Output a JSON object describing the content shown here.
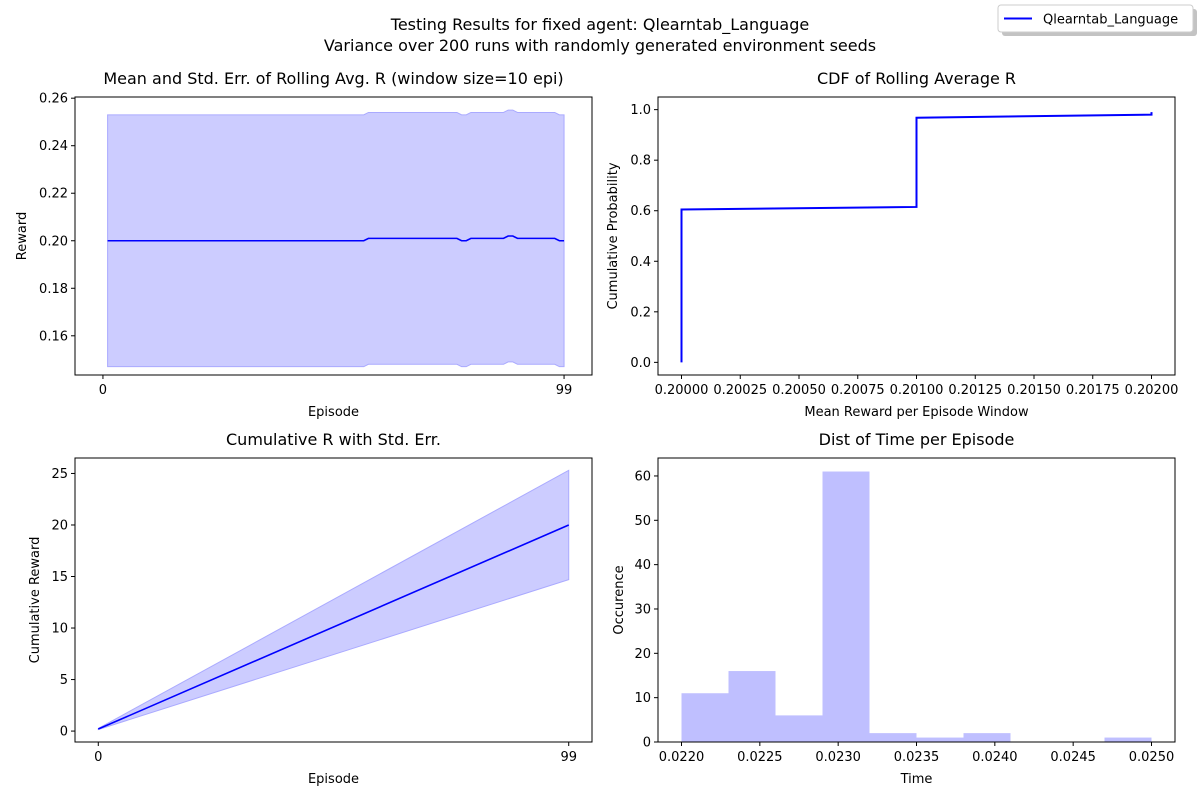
{
  "figure": {
    "suptitle_line1": "Testing Results for fixed agent: Qlearntab_Language",
    "suptitle_line2": "Variance over 200 runs with randomly generated environment seeds",
    "legend": {
      "label": "Qlearntab_Language",
      "color": "#0000ff",
      "placement": "top-right"
    }
  },
  "colors": {
    "line": "#0000ff",
    "band": "#ccccff",
    "band_edge": "#aaaaff",
    "hist": "#bfbfff"
  },
  "chart_data": [
    {
      "id": "rolling",
      "type": "line",
      "title": "Mean and Std. Err. of Rolling Avg. R (window size=10 epi)",
      "xlabel": "Episode",
      "ylabel": "Reward",
      "xlim": [
        -6,
        105
      ],
      "ylim": [
        0.1435,
        0.2605
      ],
      "xticks": [
        0,
        99
      ],
      "xtick_labels": [
        "0",
        "99"
      ],
      "yticks": [
        0.16,
        0.18,
        0.2,
        0.22,
        0.24,
        0.26
      ],
      "ytick_labels": [
        "0.16",
        "0.18",
        "0.20",
        "0.22",
        "0.24",
        "0.26"
      ],
      "series": [
        {
          "x": [
            1,
            56,
            57,
            76,
            77,
            78,
            79,
            86,
            87,
            88,
            89,
            90,
            97,
            98,
            99
          ],
          "mean": [
            0.2,
            0.2,
            0.201,
            0.201,
            0.2,
            0.2,
            0.201,
            0.201,
            0.202,
            0.202,
            0.201,
            0.201,
            0.201,
            0.2,
            0.2
          ],
          "upper": [
            0.253,
            0.253,
            0.254,
            0.254,
            0.253,
            0.253,
            0.254,
            0.254,
            0.255,
            0.255,
            0.254,
            0.254,
            0.254,
            0.253,
            0.253
          ],
          "lower": [
            0.147,
            0.147,
            0.148,
            0.148,
            0.147,
            0.147,
            0.148,
            0.148,
            0.149,
            0.149,
            0.148,
            0.148,
            0.148,
            0.147,
            0.147
          ]
        }
      ],
      "grid": false
    },
    {
      "id": "cdf",
      "type": "line",
      "title": "CDF of Rolling Average R",
      "xlabel": "Mean Reward per Episode Window",
      "ylabel": "Cumulative Probability",
      "xlim": [
        0.1999,
        0.2021
      ],
      "ylim": [
        -0.05,
        1.05
      ],
      "xticks": [
        0.2,
        0.20025,
        0.2005,
        0.20075,
        0.201,
        0.20125,
        0.2015,
        0.20175,
        0.202
      ],
      "xtick_labels": [
        "0.20000",
        "0.20025",
        "0.20050",
        "0.20075",
        "0.20100",
        "0.20125",
        "0.20150",
        "0.20175",
        "0.20200"
      ],
      "yticks": [
        0.0,
        0.2,
        0.4,
        0.6,
        0.8,
        1.0
      ],
      "ytick_labels": [
        "0.0",
        "0.2",
        "0.4",
        "0.6",
        "0.8",
        "1.0"
      ],
      "series": [
        {
          "x": [
            0.2,
            0.2,
            0.201,
            0.201,
            0.202,
            0.202,
            0.202
          ],
          "y": [
            0.0,
            0.605,
            0.615,
            0.968,
            0.98,
            0.98,
            0.99
          ]
        }
      ],
      "grid": false
    },
    {
      "id": "cumulative",
      "type": "area",
      "title": "Cumulative R with Std. Err.",
      "xlabel": "Episode",
      "ylabel": "Cumulative Reward",
      "xlim": [
        -4.9,
        103.9
      ],
      "ylim": [
        -1.06,
        26.5
      ],
      "xticks": [
        0,
        99
      ],
      "xtick_labels": [
        "0",
        "99"
      ],
      "yticks": [
        0,
        5,
        10,
        15,
        20,
        25
      ],
      "ytick_labels": [
        "0",
        "5",
        "10",
        "15",
        "20",
        "25"
      ],
      "series": [
        {
          "x": [
            0,
            99
          ],
          "mean": [
            0.2,
            20.0
          ],
          "upper": [
            0.25,
            25.3
          ],
          "lower": [
            0.15,
            14.7
          ]
        }
      ],
      "grid": false
    },
    {
      "id": "time",
      "type": "bar",
      "title": "Dist of Time per Episode",
      "xlabel": "Time",
      "ylabel": "Occurence",
      "xlim": [
        0.02185,
        0.02515
      ],
      "ylim": [
        0,
        64.05
      ],
      "xticks": [
        0.022,
        0.0225,
        0.023,
        0.0235,
        0.024,
        0.0245,
        0.025
      ],
      "xtick_labels": [
        "0.0220",
        "0.0225",
        "0.0230",
        "0.0235",
        "0.0240",
        "0.0245",
        "0.0250"
      ],
      "yticks": [
        0,
        10,
        20,
        30,
        40,
        50,
        60
      ],
      "ytick_labels": [
        "0",
        "10",
        "20",
        "30",
        "40",
        "50",
        "60"
      ],
      "bin_edges": [
        0.022,
        0.0223,
        0.0226,
        0.0229,
        0.0232,
        0.0235,
        0.0238,
        0.0241,
        0.0244,
        0.0247,
        0.025
      ],
      "values": [
        11,
        16,
        6,
        61,
        2,
        1,
        2,
        0,
        0,
        1
      ],
      "grid": false
    }
  ]
}
